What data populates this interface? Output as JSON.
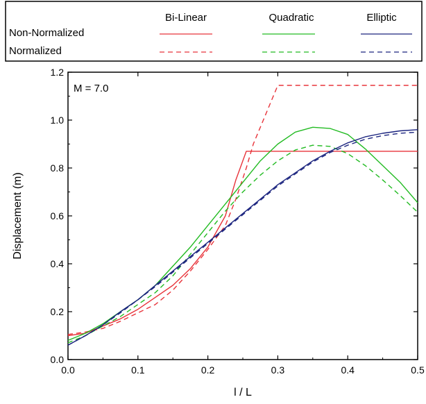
{
  "chart_data": {
    "type": "line",
    "title": "",
    "xlabel": "l / L",
    "ylabel": "Displacement (m)",
    "annotation": "M = 7.0",
    "xlim": [
      0.0,
      0.5
    ],
    "ylim": [
      0.0,
      1.2
    ],
    "x_ticks": [
      "0.0",
      "0.1",
      "0.2",
      "0.3",
      "0.4",
      "0.5"
    ],
    "y_ticks": [
      "0.0",
      "0.2",
      "0.4",
      "0.6",
      "0.8",
      "1.0",
      "1.2"
    ],
    "grid": false,
    "legend": {
      "placement": "top",
      "columns": [
        "Bi-Linear",
        "Quadratic",
        "Elliptic"
      ],
      "rows": [
        "Non-Normalized",
        "Normalized"
      ]
    },
    "colors": {
      "Bi-Linear": "#e8333a",
      "Quadratic": "#22bb22",
      "Elliptic": "#1a237e"
    },
    "series": [
      {
        "shape": "Bi-Linear",
        "style": "solid",
        "points": [
          [
            0.0,
            0.1
          ],
          [
            0.025,
            0.11
          ],
          [
            0.05,
            0.14
          ],
          [
            0.075,
            0.17
          ],
          [
            0.1,
            0.21
          ],
          [
            0.125,
            0.26
          ],
          [
            0.15,
            0.31
          ],
          [
            0.175,
            0.38
          ],
          [
            0.2,
            0.47
          ],
          [
            0.225,
            0.6
          ],
          [
            0.24,
            0.75
          ],
          [
            0.255,
            0.87
          ],
          [
            0.5,
            0.87
          ]
        ]
      },
      {
        "shape": "Bi-Linear",
        "style": "dashed",
        "points": [
          [
            0.0,
            0.105
          ],
          [
            0.025,
            0.115
          ],
          [
            0.05,
            0.13
          ],
          [
            0.075,
            0.16
          ],
          [
            0.1,
            0.195
          ],
          [
            0.125,
            0.23
          ],
          [
            0.15,
            0.29
          ],
          [
            0.175,
            0.37
          ],
          [
            0.2,
            0.46
          ],
          [
            0.225,
            0.56
          ],
          [
            0.24,
            0.67
          ],
          [
            0.255,
            0.8
          ],
          [
            0.265,
            0.9
          ],
          [
            0.3,
            1.145
          ],
          [
            0.5,
            1.145
          ]
        ]
      },
      {
        "shape": "Quadratic",
        "style": "solid",
        "points": [
          [
            0.0,
            0.08
          ],
          [
            0.025,
            0.11
          ],
          [
            0.05,
            0.15
          ],
          [
            0.075,
            0.2
          ],
          [
            0.1,
            0.25
          ],
          [
            0.125,
            0.31
          ],
          [
            0.15,
            0.39
          ],
          [
            0.175,
            0.47
          ],
          [
            0.2,
            0.56
          ],
          [
            0.225,
            0.65
          ],
          [
            0.25,
            0.74
          ],
          [
            0.275,
            0.83
          ],
          [
            0.3,
            0.9
          ],
          [
            0.325,
            0.95
          ],
          [
            0.35,
            0.97
          ],
          [
            0.375,
            0.965
          ],
          [
            0.4,
            0.94
          ],
          [
            0.425,
            0.88
          ],
          [
            0.45,
            0.81
          ],
          [
            0.475,
            0.74
          ],
          [
            0.5,
            0.655
          ]
        ]
      },
      {
        "shape": "Quadratic",
        "style": "dashed",
        "points": [
          [
            0.0,
            0.07
          ],
          [
            0.025,
            0.1
          ],
          [
            0.05,
            0.14
          ],
          [
            0.075,
            0.18
          ],
          [
            0.1,
            0.23
          ],
          [
            0.125,
            0.28
          ],
          [
            0.15,
            0.35
          ],
          [
            0.175,
            0.44
          ],
          [
            0.2,
            0.53
          ],
          [
            0.225,
            0.62
          ],
          [
            0.25,
            0.7
          ],
          [
            0.275,
            0.77
          ],
          [
            0.3,
            0.83
          ],
          [
            0.325,
            0.875
          ],
          [
            0.35,
            0.895
          ],
          [
            0.375,
            0.89
          ],
          [
            0.4,
            0.86
          ],
          [
            0.425,
            0.81
          ],
          [
            0.45,
            0.75
          ],
          [
            0.475,
            0.685
          ],
          [
            0.5,
            0.615
          ]
        ]
      },
      {
        "shape": "Elliptic",
        "style": "solid",
        "points": [
          [
            0.0,
            0.06
          ],
          [
            0.025,
            0.1
          ],
          [
            0.05,
            0.145
          ],
          [
            0.075,
            0.2
          ],
          [
            0.1,
            0.25
          ],
          [
            0.125,
            0.31
          ],
          [
            0.15,
            0.37
          ],
          [
            0.175,
            0.43
          ],
          [
            0.2,
            0.49
          ],
          [
            0.225,
            0.55
          ],
          [
            0.25,
            0.61
          ],
          [
            0.275,
            0.67
          ],
          [
            0.3,
            0.73
          ],
          [
            0.325,
            0.78
          ],
          [
            0.35,
            0.83
          ],
          [
            0.375,
            0.87
          ],
          [
            0.4,
            0.905
          ],
          [
            0.425,
            0.93
          ],
          [
            0.45,
            0.945
          ],
          [
            0.475,
            0.955
          ],
          [
            0.5,
            0.96
          ]
        ]
      },
      {
        "shape": "Elliptic",
        "style": "dashed",
        "points": [
          [
            0.0,
            0.06
          ],
          [
            0.025,
            0.1
          ],
          [
            0.05,
            0.145
          ],
          [
            0.075,
            0.195
          ],
          [
            0.1,
            0.25
          ],
          [
            0.125,
            0.305
          ],
          [
            0.15,
            0.365
          ],
          [
            0.175,
            0.425
          ],
          [
            0.2,
            0.485
          ],
          [
            0.225,
            0.545
          ],
          [
            0.25,
            0.605
          ],
          [
            0.275,
            0.665
          ],
          [
            0.3,
            0.725
          ],
          [
            0.325,
            0.775
          ],
          [
            0.35,
            0.825
          ],
          [
            0.375,
            0.865
          ],
          [
            0.4,
            0.895
          ],
          [
            0.425,
            0.92
          ],
          [
            0.45,
            0.935
          ],
          [
            0.475,
            0.945
          ],
          [
            0.5,
            0.95
          ]
        ]
      }
    ]
  }
}
